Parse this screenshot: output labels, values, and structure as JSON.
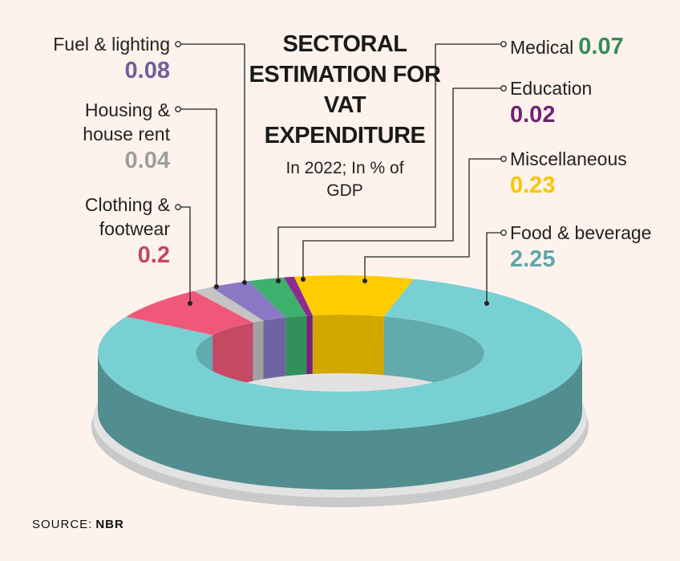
{
  "chart_data": {
    "type": "pie",
    "title": "SECTORAL ESTIMATION FOR VAT EXPENDITURE",
    "subtitle": "In 2022; In % of GDP",
    "categories": [
      "Clothing & footwear",
      "Housing & house rent",
      "Fuel & lighting",
      "Medical",
      "Education",
      "Miscellaneous",
      "Food & beverage"
    ],
    "values": [
      0.2,
      0.04,
      0.08,
      0.07,
      0.02,
      0.23,
      2.25
    ],
    "colors": [
      "#f0587a",
      "#c4c4c4",
      "#8a78c4",
      "#3db06e",
      "#8e2a92",
      "#ffcc00",
      "#78d0d2"
    ],
    "source_label": "SOURCE:",
    "source": "NBR"
  }
}
